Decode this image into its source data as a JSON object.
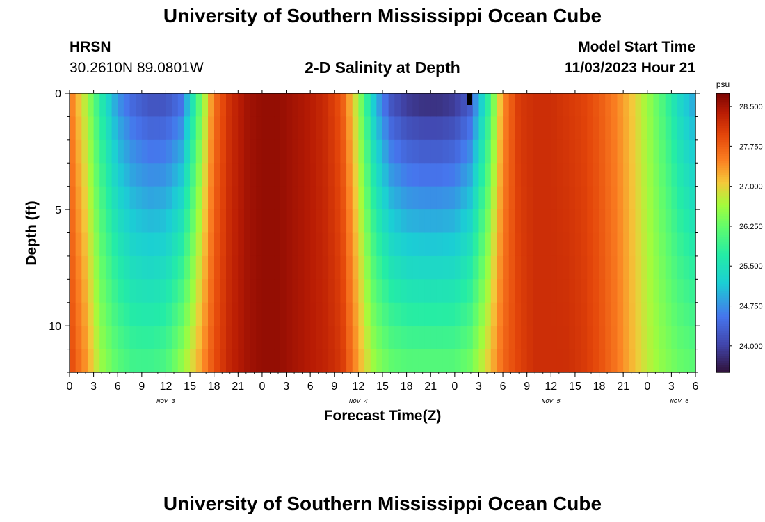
{
  "header": {
    "title": "University of Southern Mississippi Ocean Cube",
    "station": "HRSN",
    "coordinates": "30.2610N  89.0801W",
    "subtitle": "2-D Salinity at Depth",
    "model_start_label": "Model Start Time",
    "model_start_value": "11/03/2023 Hour 21"
  },
  "footer": {
    "title": "University of Southern Mississippi Ocean Cube"
  },
  "chart_data": {
    "type": "heatmap",
    "title": "2-D Salinity at Depth",
    "xlabel": "Forecast Time(Z)",
    "ylabel": "Depth (ft)",
    "x_ticks": [
      "0",
      "3",
      "6",
      "9",
      "12",
      "15",
      "18",
      "21",
      "0",
      "3",
      "6",
      "9",
      "12",
      "15",
      "18",
      "21",
      "0",
      "3",
      "6",
      "9",
      "12",
      "15",
      "18",
      "21",
      "0",
      "3",
      "6"
    ],
    "x_hours_range": [
      0,
      78
    ],
    "day_labels": [
      {
        "label": "NOV 3",
        "hour": 12
      },
      {
        "label": "NOV 4",
        "hour": 36
      },
      {
        "label": "NOV 5",
        "hour": 60
      },
      {
        "label": "NOV 6",
        "hour": 76
      }
    ],
    "y_ticks": [
      0,
      5,
      10
    ],
    "ylim": [
      0,
      12
    ],
    "colorbar": {
      "unit": "psu",
      "range": [
        23.5,
        28.75
      ],
      "tick_values": [
        28.5,
        27.75,
        27.0,
        26.25,
        25.5,
        24.75,
        24.0
      ],
      "tick_labels": [
        "28.500",
        "27.750",
        "27.000",
        "26.250",
        "25.500",
        "24.750",
        "24.000"
      ]
    },
    "series": [
      {
        "name": "salinity_profile_surface_vs_bottom",
        "hours": [
          0,
          2,
          4,
          6,
          8,
          10,
          12,
          14,
          16,
          18,
          20,
          22,
          24,
          26,
          28,
          30,
          32,
          34,
          36,
          38,
          40,
          42,
          44,
          46,
          48,
          50,
          52,
          54,
          56,
          58,
          60,
          62,
          64,
          66,
          68,
          70,
          72,
          74,
          76,
          78
        ],
        "surface_psu": [
          27.6,
          26.7,
          25.6,
          24.7,
          24.3,
          24.1,
          24.1,
          24.4,
          26.0,
          27.6,
          28.2,
          28.5,
          28.6,
          28.6,
          28.5,
          28.4,
          28.2,
          27.8,
          26.6,
          25.0,
          24.1,
          23.8,
          23.7,
          23.7,
          23.8,
          24.2,
          25.6,
          27.4,
          28.1,
          28.2,
          28.2,
          28.1,
          28.0,
          27.8,
          27.5,
          27.1,
          26.6,
          26.0,
          25.3,
          24.8
        ],
        "bottom_psu": [
          28.0,
          27.4,
          26.6,
          26.2,
          26.0,
          26.0,
          26.1,
          26.6,
          27.2,
          27.9,
          28.3,
          28.5,
          28.6,
          28.6,
          28.5,
          28.4,
          28.3,
          28.1,
          27.3,
          26.6,
          26.3,
          26.2,
          26.2,
          26.2,
          26.2,
          26.4,
          27.0,
          27.7,
          28.0,
          28.2,
          28.2,
          28.2,
          28.1,
          27.9,
          27.6,
          27.2,
          26.8,
          26.5,
          26.3,
          26.2
        ]
      }
    ]
  }
}
